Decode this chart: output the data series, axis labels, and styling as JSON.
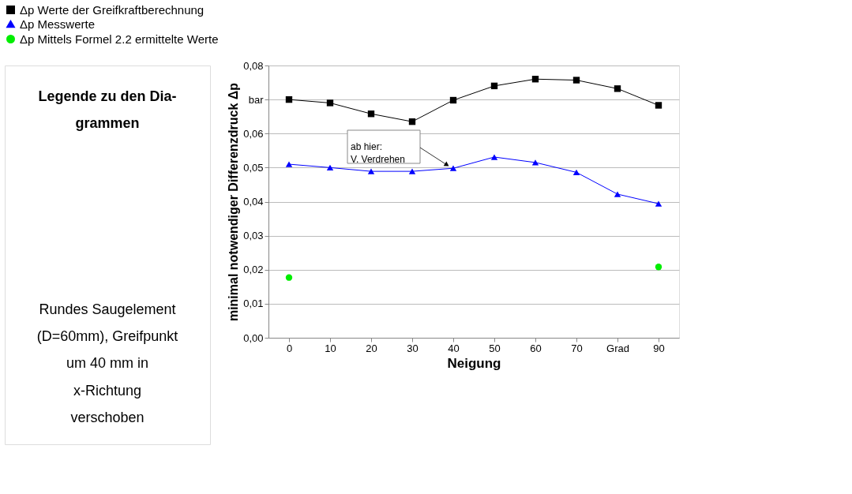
{
  "chart_data": {
    "type": "line",
    "xlabel": "Neigung",
    "ylabel": "minimal notwendiger Differenzdruck Δp",
    "x": [
      0,
      10,
      20,
      30,
      40,
      50,
      60,
      70,
      80,
      90
    ],
    "series": [
      {
        "name": "Δp Werte der Greifkraftberechnung",
        "color": "#000000",
        "marker": "square",
        "values": [
          0.07,
          0.069,
          0.0658,
          0.0635,
          0.0698,
          0.074,
          0.076,
          0.0757,
          0.0732,
          0.0683
        ]
      },
      {
        "name": "Δp Messwerte",
        "color": "#0000ff",
        "marker": "triangle",
        "values": [
          0.051,
          0.05,
          0.0489,
          0.0489,
          0.0498,
          0.0531,
          0.0515,
          0.0486,
          0.0422,
          0.0394
        ]
      },
      {
        "name": "Δp Mittels Formel 2.2 ermittelte Werte",
        "color": "#00ee00",
        "type": "scatter",
        "marker": "circle",
        "values": [
          0.0177,
          null,
          null,
          null,
          null,
          null,
          null,
          null,
          null,
          0.0208
        ]
      }
    ],
    "xlim": [
      -5,
      95
    ],
    "xticks": [
      0,
      10,
      20,
      30,
      40,
      50,
      60,
      70,
      {
        "value": 80,
        "label": "Grad"
      },
      90
    ],
    "ylim": [
      0,
      0.08
    ],
    "yticks": [
      {
        "value": 0,
        "label": "0,00"
      },
      {
        "value": 0.01,
        "label": "0,01"
      },
      {
        "value": 0.02,
        "label": "0,02"
      },
      {
        "value": 0.03,
        "label": "0,03"
      },
      {
        "value": 0.04,
        "label": "0,04"
      },
      {
        "value": 0.05,
        "label": "0,05"
      },
      {
        "value": 0.06,
        "label": "0,06"
      },
      {
        "value": 0.07,
        "label": "bar"
      },
      {
        "value": 0.08,
        "label": "0,08"
      }
    ],
    "grid": "y",
    "legend": "top",
    "annotations": [
      "ab hier:\nV. Verdrehen",
      "Legende zu den Dia-\ngrammen",
      "Rundes Saugelement\n(D=60mm), Greifpunkt\num 40 mm in\nx-Richtung\nverschoben"
    ]
  }
}
